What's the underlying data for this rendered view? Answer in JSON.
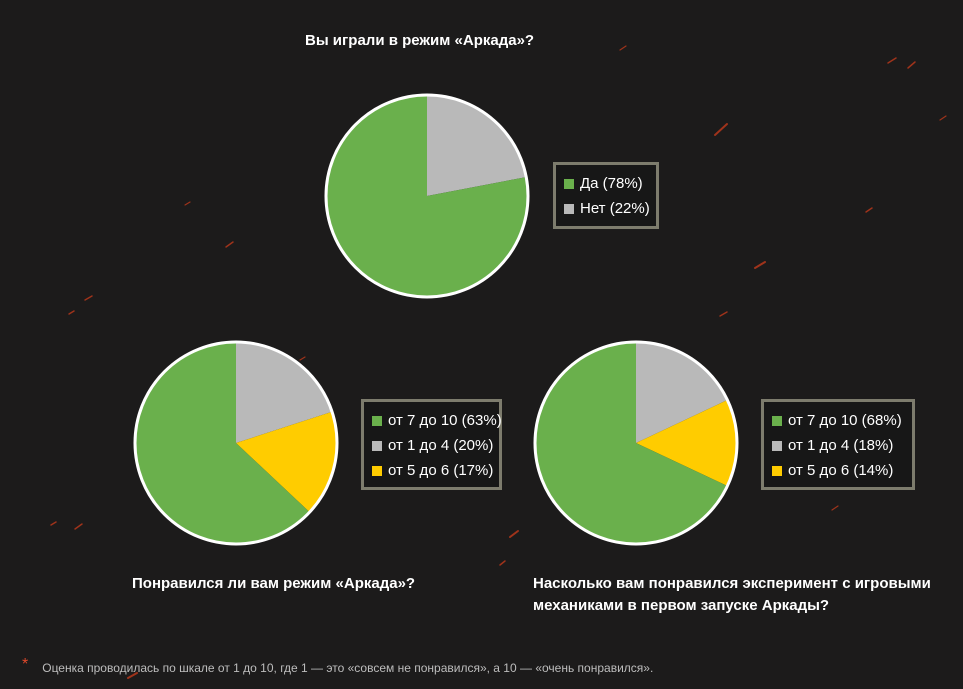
{
  "colors": {
    "background": "#1c1b1b",
    "green": "#6ab04c",
    "gray": "#b9b9b9",
    "yellow": "#ffcc00",
    "legend_border": "#7d7c6d",
    "asterisk": "#e0492b"
  },
  "chart_data": [
    {
      "type": "pie",
      "title": "Вы играли в режим «Аркада»?",
      "legend_position": "right",
      "slices": [
        {
          "label": "Да (78%)",
          "value": 78,
          "color": "#6ab04c"
        },
        {
          "label": "Нет (22%)",
          "value": 22,
          "color": "#b9b9b9"
        }
      ]
    },
    {
      "type": "pie",
      "title": "Понравился ли вам режим «Аркада»?",
      "legend_position": "right",
      "slices": [
        {
          "label": "от 7 до 10 (63%)",
          "value": 63,
          "color": "#6ab04c"
        },
        {
          "label": "от 1 до 4 (20%)",
          "value": 20,
          "color": "#b9b9b9"
        },
        {
          "label": "от 5 до 6 (17%)",
          "value": 17,
          "color": "#ffcc00"
        }
      ]
    },
    {
      "type": "pie",
      "title": "Насколько вам понравился эксперимент с игровыми механиками в первом запуске Аркады?",
      "legend_position": "right",
      "slices": [
        {
          "label": "от 7 до 10 (68%)",
          "value": 68,
          "color": "#6ab04c"
        },
        {
          "label": "от 1 до 4 (18%)",
          "value": 18,
          "color": "#b9b9b9"
        },
        {
          "label": "от 5 до 6 (14%)",
          "value": 14,
          "color": "#ffcc00"
        }
      ]
    }
  ],
  "footnote": {
    "marker": "*",
    "text": "Оценка проводилась по шкале от 1 до 10, где 1 — это «совсем не понравился», а 10 — «очень понравился»."
  }
}
